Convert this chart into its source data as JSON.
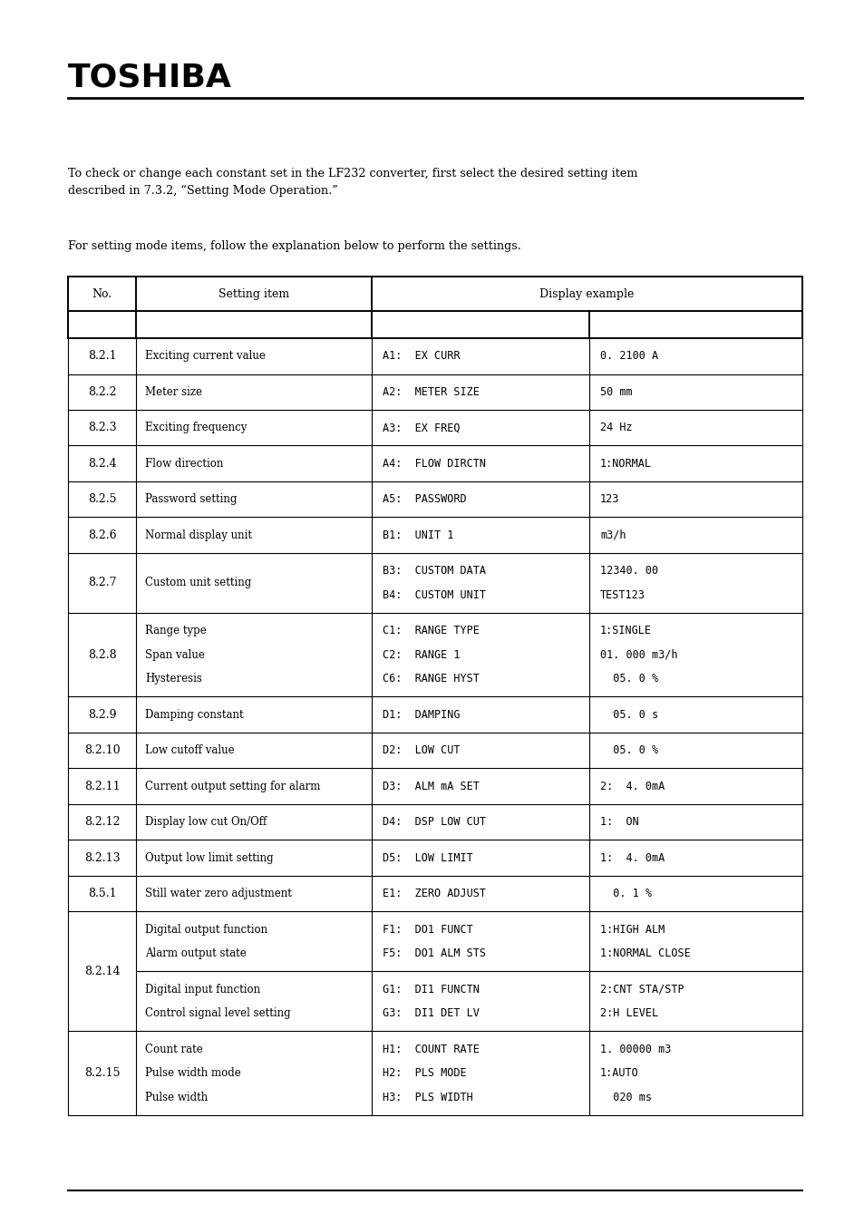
{
  "bg_color": "#ffffff",
  "text_color": "#000000",
  "logo_text": "TOSHIBA",
  "paragraph1": "To check or change each constant set in the LF232 converter, first select the desired setting item\ndescribed in 7.3.2, “Setting Mode Operation.”",
  "paragraph2": "For setting mode items, follow the explanation below to perform the settings.",
  "rows": [
    {
      "no": "8.2.1",
      "setting": "Exciting current value",
      "display_lines": [
        "A1:  EX CURR"
      ],
      "value_lines": [
        "0. 2100 A"
      ],
      "multi": false
    },
    {
      "no": "8.2.2",
      "setting": "Meter size",
      "display_lines": [
        "A2:  METER SIZE"
      ],
      "value_lines": [
        "50 mm"
      ],
      "multi": false
    },
    {
      "no": "8.2.3",
      "setting": "Exciting frequency",
      "display_lines": [
        "A3:  EX FREQ"
      ],
      "value_lines": [
        "24 Hz"
      ],
      "multi": false
    },
    {
      "no": "8.2.4",
      "setting": "Flow direction",
      "display_lines": [
        "A4:  FLOW DIRCTN"
      ],
      "value_lines": [
        "1:NORMAL"
      ],
      "multi": false
    },
    {
      "no": "8.2.5",
      "setting": "Password setting",
      "display_lines": [
        "A5:  PASSWORD"
      ],
      "value_lines": [
        "123"
      ],
      "multi": false
    },
    {
      "no": "8.2.6",
      "setting": "Normal display unit",
      "display_lines": [
        "B1:  UNIT 1"
      ],
      "value_lines": [
        "m3/h"
      ],
      "multi": false
    },
    {
      "no": "8.2.7",
      "setting": "Custom unit setting",
      "display_lines": [
        "B3:  CUSTOM DATA",
        "B4:  CUSTOM UNIT"
      ],
      "value_lines": [
        "12340. 00",
        "TEST123"
      ],
      "multi": false
    },
    {
      "no": "8.2.8",
      "setting": "Range type\nSpan value\nHysteresis",
      "display_lines": [
        "C1:  RANGE TYPE",
        "C2:  RANGE 1",
        "C6:  RANGE HYST"
      ],
      "value_lines": [
        "1:SINGLE",
        "01. 000 m3/h",
        "  05. 0 %"
      ],
      "multi": false
    },
    {
      "no": "8.2.9",
      "setting": "Damping constant",
      "display_lines": [
        "D1:  DAMPING"
      ],
      "value_lines": [
        "  05. 0 s"
      ],
      "multi": false
    },
    {
      "no": "8.2.10",
      "setting": "Low cutoff value",
      "display_lines": [
        "D2:  LOW CUT"
      ],
      "value_lines": [
        "  05. 0 %"
      ],
      "multi": false
    },
    {
      "no": "8.2.11",
      "setting": "Current output setting for alarm",
      "display_lines": [
        "D3:  ALM mA SET"
      ],
      "value_lines": [
        "2:  4. 0mA"
      ],
      "multi": false
    },
    {
      "no": "8.2.12",
      "setting": "Display low cut On/Off",
      "display_lines": [
        "D4:  DSP LOW CUT"
      ],
      "value_lines": [
        "1:  ON"
      ],
      "multi": false
    },
    {
      "no": "8.2.13",
      "setting": "Output low limit setting",
      "display_lines": [
        "D5:  LOW LIMIT"
      ],
      "value_lines": [
        "1:  4. 0mA"
      ],
      "multi": false
    },
    {
      "no": "8.5.1",
      "setting": "Still water zero adjustment",
      "display_lines": [
        "E1:  ZERO ADJUST"
      ],
      "value_lines": [
        "  0. 1 %"
      ],
      "multi": false
    },
    {
      "no": "8.2.14",
      "setting_top": "Digital output function\nAlarm output state",
      "setting_bottom": "Digital input function\nControl signal level setting",
      "display_top": [
        "F1:  DO1 FUNCT",
        "F5:  DO1 ALM STS"
      ],
      "display_bottom": [
        "G1:  DI1 FUNCTN",
        "G3:  DI1 DET LV"
      ],
      "value_top": [
        "1:HIGH ALM",
        "1:NORMAL CLOSE"
      ],
      "value_bottom": [
        "2:CNT STA/STP",
        "2:H LEVEL"
      ],
      "multi": true
    },
    {
      "no": "8.2.15",
      "setting": "Count rate\nPulse width mode\nPulse width",
      "display_lines": [
        "H1:  COUNT RATE",
        "H2:  PLS MODE",
        "H3:  PLS WIDTH"
      ],
      "value_lines": [
        "1. 00000 m3",
        "1:AUTO",
        "  020 ms"
      ],
      "multi": false
    }
  ]
}
